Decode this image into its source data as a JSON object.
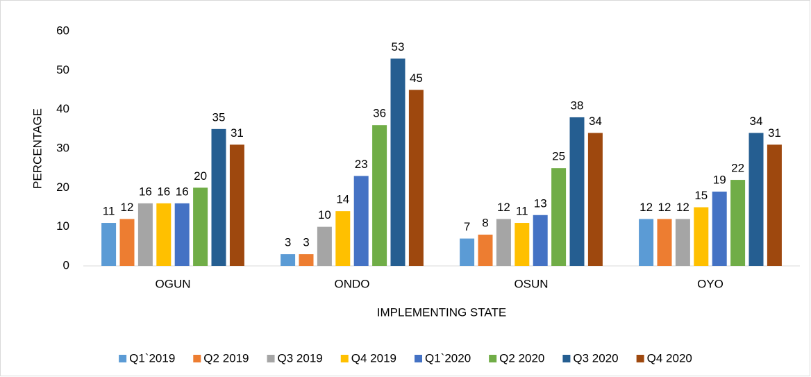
{
  "chart_data": {
    "type": "bar",
    "categories": [
      "OGUN",
      "ONDO",
      "OSUN",
      "OYO"
    ],
    "series": [
      {
        "name": "Q1`2019",
        "color": "#5b9bd5",
        "values": [
          11,
          3,
          7,
          12
        ]
      },
      {
        "name": "Q2 2019",
        "color": "#ed7d31",
        "values": [
          12,
          3,
          8,
          12
        ]
      },
      {
        "name": "Q3 2019",
        "color": "#a5a5a5",
        "values": [
          16,
          10,
          12,
          12
        ]
      },
      {
        "name": "Q4 2019",
        "color": "#ffc000",
        "values": [
          16,
          14,
          11,
          15
        ]
      },
      {
        "name": "Q1`2020",
        "color": "#4472c4",
        "values": [
          16,
          23,
          13,
          19
        ]
      },
      {
        "name": "Q2 2020",
        "color": "#70ad47",
        "values": [
          20,
          36,
          25,
          22
        ]
      },
      {
        "name": "Q3 2020",
        "color": "#255e91",
        "values": [
          35,
          53,
          38,
          34
        ]
      },
      {
        "name": "Q4 2020",
        "color": "#9e480e",
        "values": [
          31,
          45,
          34,
          31
        ]
      }
    ],
    "ylabel": "PERCENTAGE",
    "xlabel": "IMPLEMENTING STATE",
    "ylim": [
      0,
      60
    ],
    "yticks": [
      0,
      10,
      20,
      30,
      40,
      50,
      60
    ],
    "grid": false,
    "legend": "bottom"
  }
}
